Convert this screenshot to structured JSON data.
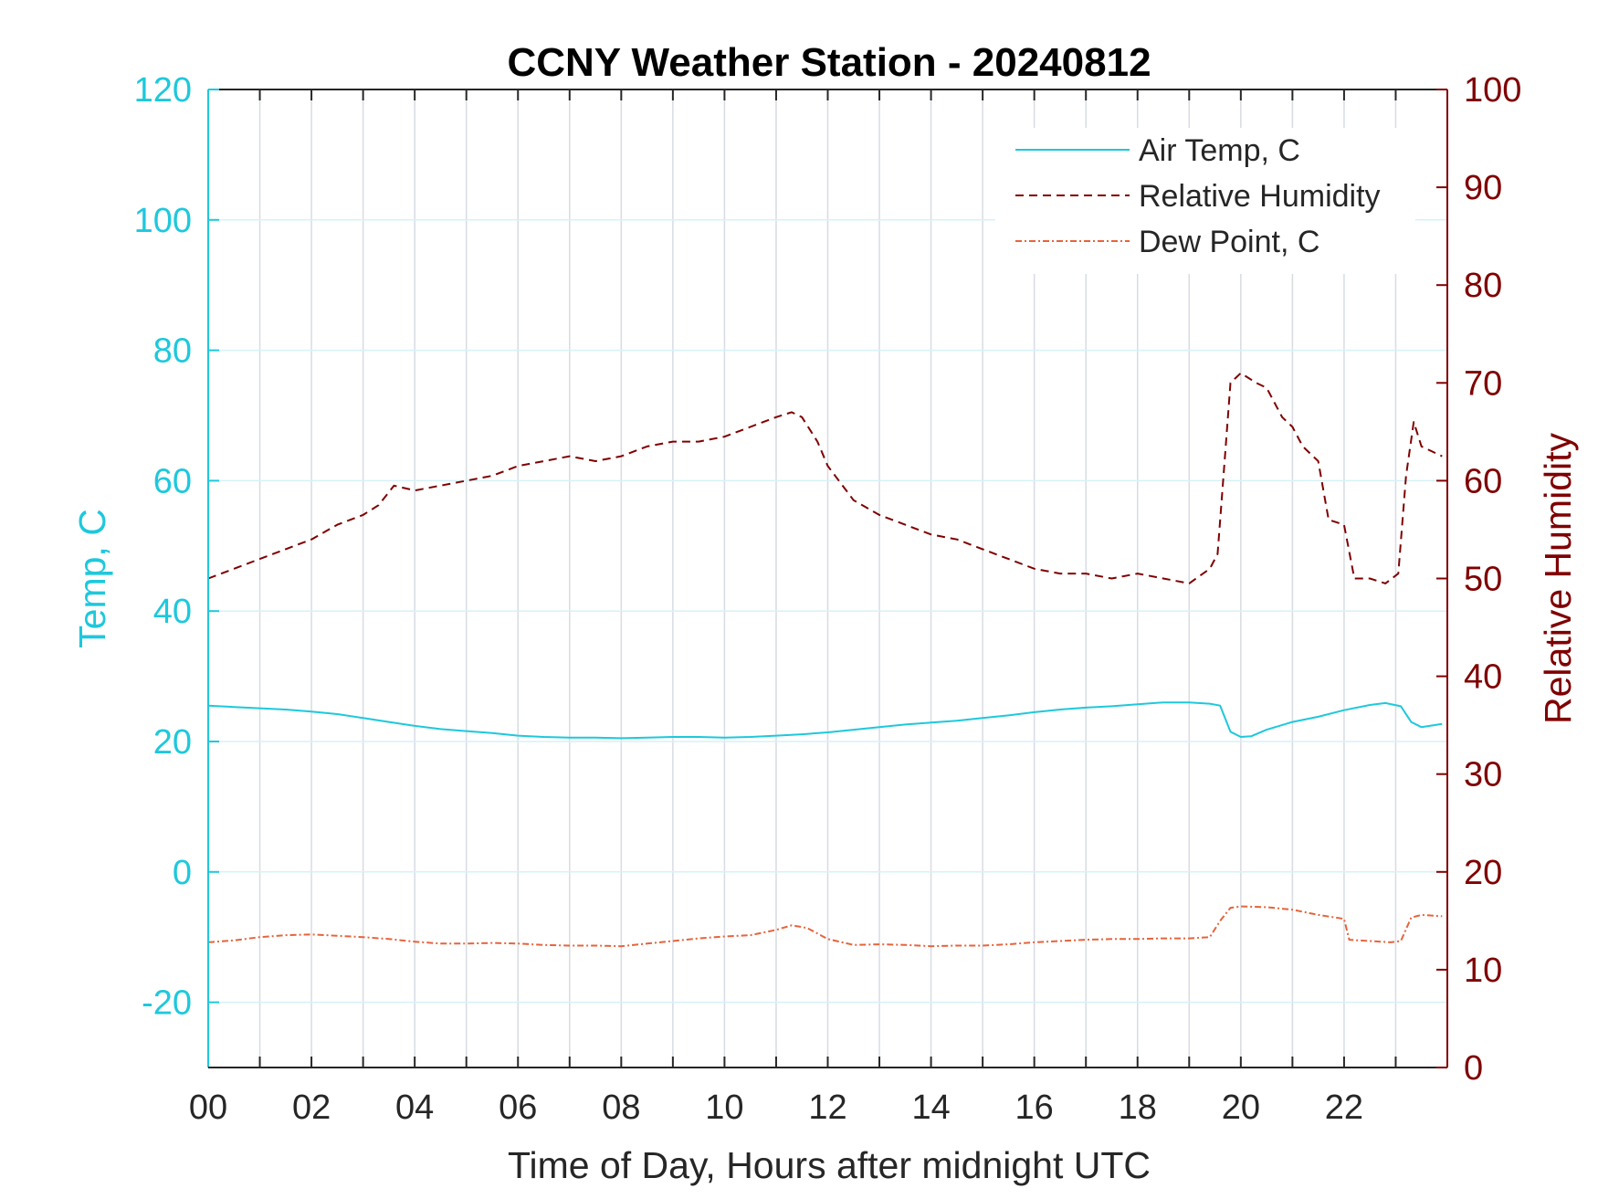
{
  "chart_data": {
    "type": "line",
    "title": "CCNY Weather Station - 20240812",
    "xlabel": "Time of Day, Hours after midnight UTC",
    "ylabel_left": "Temp, C",
    "ylabel_right": "Relative Humidity",
    "xlim": [
      0,
      24
    ],
    "ylim_left": [
      -30,
      120
    ],
    "ylim_right": [
      0,
      100
    ],
    "x_ticks": [
      0,
      2,
      4,
      6,
      8,
      10,
      12,
      14,
      16,
      18,
      20,
      22
    ],
    "x_tick_labels": [
      "00",
      "02",
      "04",
      "06",
      "08",
      "10",
      "12",
      "14",
      "16",
      "18",
      "20",
      "22"
    ],
    "y_left_ticks": [
      -20,
      0,
      20,
      40,
      60,
      80,
      100,
      120
    ],
    "y_left_tick_labels": [
      "-20",
      "0",
      "20",
      "40",
      "60",
      "80",
      "100",
      "120"
    ],
    "y_right_ticks": [
      0,
      10,
      20,
      30,
      40,
      50,
      60,
      70,
      80,
      90,
      100
    ],
    "y_right_tick_labels": [
      "0",
      "10",
      "20",
      "30",
      "40",
      "50",
      "60",
      "70",
      "80",
      "90",
      "100"
    ],
    "grid": true,
    "legend_position": "top-right",
    "colors": {
      "left_axis": "#1ec8dc",
      "right_axis": "#7f0000",
      "dew_point": "#e5643c",
      "axis_box": "#262626",
      "grid_vertical": "#d7dce3",
      "grid_horizontal": "#d6f2f7"
    },
    "series": [
      {
        "name": "Air Temp, C",
        "axis": "left",
        "style": "solid",
        "x": [
          0,
          0.5,
          1,
          1.5,
          2,
          2.5,
          3,
          3.5,
          4,
          4.5,
          5,
          5.5,
          6,
          6.5,
          7,
          7.5,
          8,
          8.5,
          9,
          9.5,
          10,
          10.5,
          11,
          11.5,
          12,
          12.5,
          13,
          13.5,
          14,
          14.5,
          15,
          15.5,
          16,
          16.5,
          17,
          17.5,
          18,
          18.5,
          19,
          19.4,
          19.6,
          19.8,
          20,
          20.2,
          20.5,
          21,
          21.5,
          22,
          22.5,
          22.8,
          23.1,
          23.3,
          23.5,
          23.9
        ],
        "y": [
          25.5,
          25.3,
          25.1,
          24.9,
          24.6,
          24.2,
          23.6,
          23.0,
          22.4,
          21.9,
          21.6,
          21.3,
          20.9,
          20.7,
          20.6,
          20.6,
          20.5,
          20.6,
          20.7,
          20.7,
          20.6,
          20.7,
          20.9,
          21.1,
          21.4,
          21.8,
          22.2,
          22.6,
          22.9,
          23.2,
          23.6,
          24.0,
          24.5,
          24.9,
          25.2,
          25.4,
          25.7,
          26.0,
          26.0,
          25.8,
          25.5,
          21.5,
          20.7,
          20.8,
          21.8,
          23.0,
          23.8,
          24.8,
          25.6,
          25.9,
          25.4,
          23.0,
          22.2,
          22.7
        ]
      },
      {
        "name": "Relative Humidity",
        "axis": "right",
        "style": "dashed",
        "x": [
          0,
          0.5,
          1,
          1.5,
          2,
          2.5,
          3,
          3.3,
          3.6,
          4,
          4.5,
          5,
          5.5,
          6,
          6.5,
          7,
          7.5,
          8,
          8.5,
          9,
          9.5,
          10,
          10.5,
          11,
          11.3,
          11.5,
          11.8,
          12,
          12.5,
          13,
          13.5,
          14,
          14.5,
          15,
          15.5,
          16,
          16.5,
          17,
          17.5,
          18,
          18.5,
          19,
          19.4,
          19.55,
          19.7,
          19.8,
          20,
          20.3,
          20.5,
          20.8,
          21,
          21.2,
          21.5,
          21.7,
          22,
          22.2,
          22.5,
          22.8,
          23.05,
          23.2,
          23.35,
          23.5,
          23.9
        ],
        "y": [
          50.0,
          51.0,
          52.0,
          53.0,
          54.0,
          55.5,
          56.5,
          57.5,
          59.5,
          59.0,
          59.5,
          60.0,
          60.5,
          61.5,
          62.0,
          62.5,
          62.0,
          62.5,
          63.5,
          64.0,
          64.0,
          64.5,
          65.5,
          66.5,
          67.0,
          66.5,
          64.0,
          61.5,
          58.0,
          56.5,
          55.5,
          54.5,
          54.0,
          53.0,
          52.0,
          51.0,
          50.5,
          50.5,
          50.0,
          50.5,
          50.0,
          49.5,
          51.0,
          52.5,
          63.0,
          70.0,
          71.0,
          70.0,
          69.5,
          66.5,
          65.5,
          63.5,
          62.0,
          56.0,
          55.5,
          50.0,
          50.0,
          49.5,
          50.5,
          60.5,
          66.0,
          63.5,
          62.5
        ]
      },
      {
        "name": "Dew Point, C",
        "axis": "left",
        "style": "dashdot",
        "x": [
          0,
          0.5,
          1,
          1.5,
          2,
          2.5,
          3,
          3.5,
          4,
          4.5,
          5,
          5.5,
          6,
          6.5,
          7,
          7.5,
          8,
          8.5,
          9,
          9.5,
          10,
          10.5,
          11,
          11.3,
          11.6,
          12,
          12.5,
          13,
          13.5,
          14,
          14.5,
          15,
          15.5,
          16,
          16.5,
          17,
          17.5,
          18,
          18.5,
          19,
          19.4,
          19.6,
          19.8,
          20,
          20.5,
          21,
          21.5,
          22,
          22.1,
          22.5,
          22.9,
          23.1,
          23.3,
          23.5,
          23.9
        ],
        "y": [
          -10.8,
          -10.5,
          -10.0,
          -9.7,
          -9.6,
          -9.8,
          -10.0,
          -10.3,
          -10.7,
          -11.0,
          -11.0,
          -10.9,
          -11.0,
          -11.2,
          -11.3,
          -11.3,
          -11.4,
          -11.0,
          -10.6,
          -10.2,
          -9.9,
          -9.7,
          -8.9,
          -8.2,
          -8.6,
          -10.3,
          -11.2,
          -11.1,
          -11.2,
          -11.4,
          -11.3,
          -11.3,
          -11.1,
          -10.8,
          -10.6,
          -10.4,
          -10.3,
          -10.3,
          -10.2,
          -10.2,
          -10.0,
          -7.5,
          -5.5,
          -5.3,
          -5.4,
          -5.8,
          -6.6,
          -7.2,
          -10.4,
          -10.6,
          -10.8,
          -10.6,
          -7.0,
          -6.6,
          -6.8
        ]
      }
    ]
  }
}
